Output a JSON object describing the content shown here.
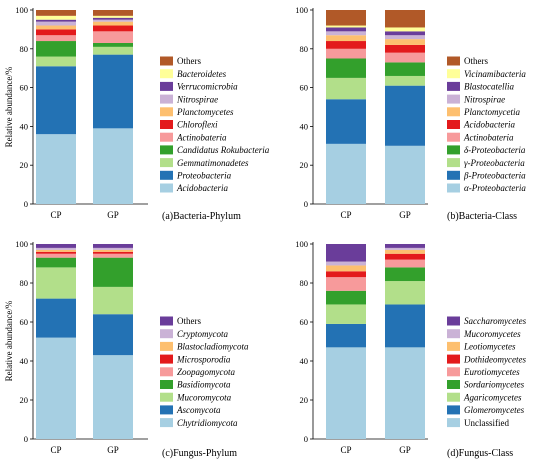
{
  "chart_data": [
    {
      "type": "bar",
      "title": "(a)Bacteria-Phylum",
      "xlabel": "",
      "ylabel": "Relative abundance/%",
      "ylim": [
        0,
        100
      ],
      "yticks": [
        "0",
        "20",
        "40",
        "60",
        "80",
        "100"
      ],
      "categories": [
        "CP",
        "GP"
      ],
      "legend_position": "right",
      "series": [
        {
          "name": "Acidobacteria",
          "color": "#a6cfe2",
          "italic": true,
          "values": [
            36,
            39
          ]
        },
        {
          "name": "Proteobacteria",
          "color": "#2372b4",
          "italic": true,
          "values": [
            35,
            38
          ]
        },
        {
          "name": "Gemmatimonadetes",
          "color": "#b2df8a",
          "italic": true,
          "values": [
            5,
            4
          ]
        },
        {
          "name": "Candidatus Rokubacteria",
          "color": "#33a02c",
          "italic": true,
          "values": [
            8,
            2
          ]
        },
        {
          "name": "Actinobateria",
          "color": "#f79a9b",
          "italic": true,
          "values": [
            3,
            6
          ]
        },
        {
          "name": "Chloroflexi",
          "color": "#e31a1c",
          "italic": true,
          "values": [
            3,
            3
          ]
        },
        {
          "name": "Planctomycetes",
          "color": "#fdbf6f",
          "italic": true,
          "values": [
            2,
            2
          ]
        },
        {
          "name": "Nitrospirae",
          "color": "#cab2d6",
          "italic": true,
          "values": [
            2,
            1
          ]
        },
        {
          "name": "Verrucomicrobia",
          "color": "#6a3d9a",
          "italic": true,
          "values": [
            1,
            1
          ]
        },
        {
          "name": "Bacteroidetes",
          "color": "#ffff99",
          "italic": true,
          "values": [
            2,
            1
          ]
        },
        {
          "name": "Others",
          "color": "#b15928",
          "italic": false,
          "values": [
            3,
            3
          ]
        }
      ]
    },
    {
      "type": "bar",
      "title": "(b)Bacteria-Class",
      "xlabel": "",
      "ylabel": "",
      "ylim": [
        0,
        100
      ],
      "yticks": [
        "0",
        "20",
        "40",
        "60",
        "80",
        "100"
      ],
      "categories": [
        "CP",
        "GP"
      ],
      "legend_position": "right",
      "series": [
        {
          "name": "α-Proteobacteria",
          "color": "#a6cfe2",
          "italic": true,
          "values": [
            31,
            30
          ]
        },
        {
          "name": "β-Proteobacteria",
          "color": "#2372b4",
          "italic": true,
          "values": [
            23,
            31
          ]
        },
        {
          "name": "γ-Proteobacteria",
          "color": "#b2df8a",
          "italic": true,
          "values": [
            11,
            5
          ]
        },
        {
          "name": "δ-Proteobacteria",
          "color": "#33a02c",
          "italic": true,
          "values": [
            10,
            7
          ]
        },
        {
          "name": "Actinobateria",
          "color": "#f79a9b",
          "italic": true,
          "values": [
            5,
            5
          ]
        },
        {
          "name": "Acidobacteria",
          "color": "#e31a1c",
          "italic": true,
          "values": [
            4,
            4
          ]
        },
        {
          "name": "Planctomycetia",
          "color": "#fdbf6f",
          "italic": true,
          "values": [
            3,
            3
          ]
        },
        {
          "name": "Nitrospirae",
          "color": "#cab2d6",
          "italic": true,
          "values": [
            2,
            2
          ]
        },
        {
          "name": "Blastocatellia",
          "color": "#6a3d9a",
          "italic": true,
          "values": [
            2,
            2
          ]
        },
        {
          "name": "Vicinamibacteria",
          "color": "#ffff99",
          "italic": true,
          "values": [
            1,
            2
          ]
        },
        {
          "name": "Others",
          "color": "#b15928",
          "italic": false,
          "values": [
            8,
            9
          ]
        }
      ]
    },
    {
      "type": "bar",
      "title": "(c)Fungus-Phylum",
      "xlabel": "",
      "ylabel": "Relative abundance/%",
      "ylim": [
        0,
        100
      ],
      "yticks": [
        "0",
        "20",
        "40",
        "60",
        "80",
        "100"
      ],
      "categories": [
        "CP",
        "GP"
      ],
      "legend_position": "right",
      "series": [
        {
          "name": "Chytridiomycota",
          "color": "#a6cfe2",
          "italic": true,
          "values": [
            52,
            43
          ]
        },
        {
          "name": "Ascomycota",
          "color": "#2372b4",
          "italic": true,
          "values": [
            20,
            21
          ]
        },
        {
          "name": "Mucoromycota",
          "color": "#b2df8a",
          "italic": true,
          "values": [
            16,
            14
          ]
        },
        {
          "name": "Basidiomycota",
          "color": "#33a02c",
          "italic": true,
          "values": [
            5,
            15
          ]
        },
        {
          "name": "Zoopagomycota",
          "color": "#f79a9b",
          "italic": true,
          "values": [
            2,
            2
          ]
        },
        {
          "name": "Microsporodia",
          "color": "#e31a1c",
          "italic": true,
          "values": [
            1,
            1
          ]
        },
        {
          "name": "Blastocladiomycota",
          "color": "#fdbf6f",
          "italic": true,
          "values": [
            1,
            1
          ]
        },
        {
          "name": "Cryptomycota",
          "color": "#cab2d6",
          "italic": true,
          "values": [
            1,
            1
          ]
        },
        {
          "name": "Others",
          "color": "#6a3d9a",
          "italic": false,
          "values": [
            2,
            2
          ]
        }
      ]
    },
    {
      "type": "bar",
      "title": "(d)Fungus-Class",
      "xlabel": "",
      "ylabel": "",
      "ylim": [
        0,
        100
      ],
      "yticks": [
        "0",
        "20",
        "40",
        "60",
        "80",
        "100"
      ],
      "categories": [
        "CP",
        "GP"
      ],
      "legend_position": "right",
      "series": [
        {
          "name": "Unclassified",
          "color": "#a6cfe2",
          "italic": false,
          "values": [
            47,
            47
          ]
        },
        {
          "name": "Glomeromycetes",
          "color": "#2372b4",
          "italic": true,
          "values": [
            12,
            22
          ]
        },
        {
          "name": "Agaricomycetes",
          "color": "#b2df8a",
          "italic": true,
          "values": [
            10,
            12
          ]
        },
        {
          "name": "Sordariomycetes",
          "color": "#33a02c",
          "italic": true,
          "values": [
            7,
            7
          ]
        },
        {
          "name": "Eurotiomycetes",
          "color": "#f79a9b",
          "italic": true,
          "values": [
            7,
            4
          ]
        },
        {
          "name": "Dothideomycetes",
          "color": "#e31a1c",
          "italic": true,
          "values": [
            3,
            3
          ]
        },
        {
          "name": "Leotiomycetes",
          "color": "#fdbf6f",
          "italic": true,
          "values": [
            3,
            2
          ]
        },
        {
          "name": "Mucoromycetes",
          "color": "#cab2d6",
          "italic": true,
          "values": [
            2,
            1
          ]
        },
        {
          "name": "Saccharomycetes",
          "color": "#6a3d9a",
          "italic": true,
          "values": [
            9,
            2
          ]
        }
      ]
    }
  ]
}
